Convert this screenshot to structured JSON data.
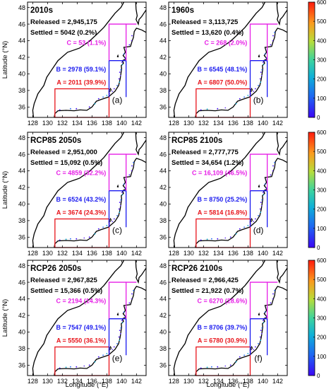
{
  "figure": {
    "y_axis_label": "Latitude (°N)",
    "x_axis_label": "Longitude (°E)",
    "lat_ticks": [
      "48",
      "46",
      "44",
      "42",
      "40",
      "38",
      "36"
    ],
    "lon_ticks": [
      "128",
      "130",
      "132",
      "134",
      "136",
      "138",
      "140",
      "142"
    ],
    "colorbar_ticks": [
      "600",
      "500",
      "400",
      "300",
      "200",
      "100",
      "0"
    ],
    "colors": {
      "region_a": "#e8141b",
      "region_b": "#1a1aef",
      "region_c": "#e61ee6",
      "coast": "#000000"
    }
  },
  "panels": [
    {
      "title": "2010s",
      "released": "Released = 2,945,175",
      "settled": "Settled = 5042 (0.2%)",
      "region_c": "C = 53 (1.1%)",
      "region_b": "B = 2978 (59.1%)",
      "region_a": "A = 2011 (39.9%)",
      "label": "(a)"
    },
    {
      "title": "1960s",
      "released": "Released = 3,113,725",
      "settled": "Settled = 13,620 (0.4%)",
      "region_c": "C = 268 (2.0%)",
      "region_b": "B = 6545 (48.1%)",
      "region_a": "A = 6807 (50.0%)",
      "label": "(b)"
    },
    {
      "title": "RCP85 2050s",
      "released": "Released = 2,951,000",
      "settled": "Settled = 15,092 (0.5%)",
      "region_c": "C = 4859 (32.2%)",
      "region_b": "B = 6524 (43.2%)",
      "region_a": "A = 3674 (24.3%)",
      "label": "(c)"
    },
    {
      "title": "RCP85 2100s",
      "released": "Released = 2,777,775",
      "settled": "Settled = 34,654 (1.2%)",
      "region_c": "C = 16,109 (46.5%)",
      "region_b": "B = 8750 (25.2%)",
      "region_a": "A = 5814 (16.8%)",
      "label": "(d)"
    },
    {
      "title": "RCP26 2050s",
      "released": "Released = 2,967,825",
      "settled": "Settled = 15,366 (0.5%)",
      "region_c": "C = 2194 (14.3%)",
      "region_b": "B = 7547 (49.1%)",
      "region_a": "A = 5550 (36.1%)",
      "label": "(e)"
    },
    {
      "title": "RCP26 2100s",
      "released": "Released = 2,966,425",
      "settled": "Settled = 21,922 (0.7%)",
      "region_c": "C = 6270 (28.6%)",
      "region_b": "B = 8706 (39.7%)",
      "region_a": "A = 6780 (30.9%)",
      "label": "(f)"
    }
  ]
}
